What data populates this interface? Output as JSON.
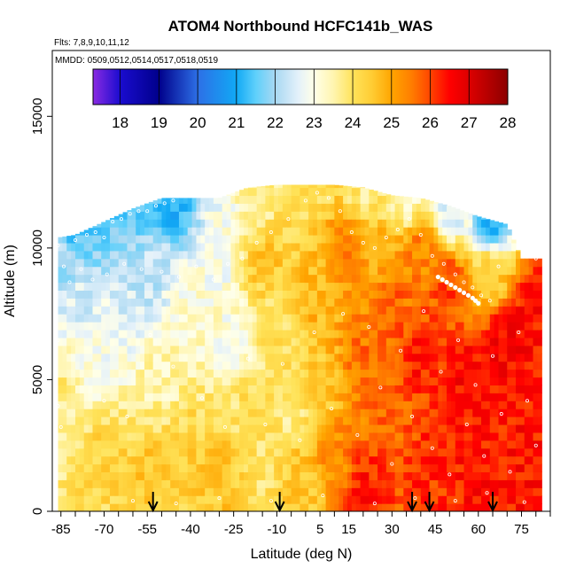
{
  "chart_data": {
    "type": "heatmap",
    "title": "ATOM4 Northbound HCFC141b_WAS",
    "flights_label": "Flts: 7,8,9,10,11,12",
    "dates_label": "MMDD: 0509,0512,0514,0517,0518,0519",
    "xlabel": "Latitude (deg N)",
    "ylabel": "Altitude (m)",
    "xlim": [
      -88,
      85
    ],
    "ylim": [
      0,
      17500
    ],
    "x_ticks": [
      -85,
      -80,
      -75,
      -70,
      -65,
      -60,
      -55,
      -50,
      -45,
      -40,
      -35,
      -30,
      -25,
      -20,
      -15,
      -10,
      -5,
      0,
      5,
      10,
      15,
      20,
      25,
      30,
      35,
      40,
      45,
      50,
      55,
      60,
      65,
      70,
      75,
      80,
      85
    ],
    "x_tick_labels": [
      {
        "value": -85,
        "label": "-85"
      },
      {
        "value": -70,
        "label": "-70"
      },
      {
        "value": -55,
        "label": "-55"
      },
      {
        "value": -40,
        "label": "-40"
      },
      {
        "value": -25,
        "label": "-25"
      },
      {
        "value": -10,
        "label": "-10"
      },
      {
        "value": 5,
        "label": "5"
      },
      {
        "value": 15,
        "label": "15"
      },
      {
        "value": 30,
        "label": "30"
      },
      {
        "value": 45,
        "label": "45"
      },
      {
        "value": 60,
        "label": "60"
      },
      {
        "value": 75,
        "label": "75"
      }
    ],
    "y_ticks": [
      {
        "value": 0,
        "label": "0"
      },
      {
        "value": 5000,
        "label": "5000"
      },
      {
        "value": 10000,
        "label": "10000"
      },
      {
        "value": 15000,
        "label": "15000"
      }
    ],
    "colorbar": {
      "min": 17.3,
      "max": 28,
      "ticks": [
        {
          "value": 18,
          "label": "18"
        },
        {
          "value": 19,
          "label": "19"
        },
        {
          "value": 20,
          "label": "20"
        },
        {
          "value": 21,
          "label": "21"
        },
        {
          "value": 22,
          "label": "22"
        },
        {
          "value": 23,
          "label": "23"
        },
        {
          "value": 24,
          "label": "24"
        },
        {
          "value": 25,
          "label": "25"
        },
        {
          "value": 26,
          "label": "26"
        },
        {
          "value": 27,
          "label": "27"
        },
        {
          "value": 28,
          "label": "28"
        }
      ],
      "stops": [
        {
          "value": 17.3,
          "color": "#8a2be2"
        },
        {
          "value": 18.0,
          "color": "#1a0ccf"
        },
        {
          "value": 19.0,
          "color": "#00008b"
        },
        {
          "value": 20.0,
          "color": "#2d6fe6"
        },
        {
          "value": 21.0,
          "color": "#11a9f5"
        },
        {
          "value": 21.5,
          "color": "#5fd0fb"
        },
        {
          "value": 22.0,
          "color": "#a8d8f2"
        },
        {
          "value": 22.6,
          "color": "#e4f1fa"
        },
        {
          "value": 23.0,
          "color": "#ffffe8"
        },
        {
          "value": 23.5,
          "color": "#fff5b0"
        },
        {
          "value": 24.0,
          "color": "#ffe35a"
        },
        {
          "value": 24.5,
          "color": "#ffcc33"
        },
        {
          "value": 25.0,
          "color": "#ffa500"
        },
        {
          "value": 25.5,
          "color": "#ff7f00"
        },
        {
          "value": 26.0,
          "color": "#ff4500"
        },
        {
          "value": 26.5,
          "color": "#ff0000"
        },
        {
          "value": 27.0,
          "color": "#dd0000"
        },
        {
          "value": 27.5,
          "color": "#b50000"
        },
        {
          "value": 28.0,
          "color": "#8b0000"
        }
      ]
    },
    "profile_arrows_lat": [
      -53,
      -9,
      37,
      43,
      65
    ],
    "coverage": [
      {
        "lat": -86,
        "ceiling": 10400
      },
      {
        "lat": -80,
        "ceiling": 10500
      },
      {
        "lat": -70,
        "ceiling": 11000
      },
      {
        "lat": -60,
        "ceiling": 11500
      },
      {
        "lat": -50,
        "ceiling": 11900
      },
      {
        "lat": -40,
        "ceiling": 11900
      },
      {
        "lat": -30,
        "ceiling": 11900
      },
      {
        "lat": -20,
        "ceiling": 12300
      },
      {
        "lat": -10,
        "ceiling": 12400
      },
      {
        "lat": 0,
        "ceiling": 12400
      },
      {
        "lat": 10,
        "ceiling": 12400
      },
      {
        "lat": 20,
        "ceiling": 12300
      },
      {
        "lat": 30,
        "ceiling": 12000
      },
      {
        "lat": 40,
        "ceiling": 11900
      },
      {
        "lat": 50,
        "ceiling": 11600
      },
      {
        "lat": 60,
        "ceiling": 11200
      },
      {
        "lat": 70,
        "ceiling": 10900
      },
      {
        "lat": 75,
        "ceiling": 9600
      },
      {
        "lat": 82,
        "ceiling": 9600
      }
    ],
    "value_field": [
      {
        "lat": -85,
        "alt": 9500,
        "value": 22.0
      },
      {
        "lat": -80,
        "alt": 10500,
        "value": 21.5
      },
      {
        "lat": -70,
        "alt": 11200,
        "value": 21.5
      },
      {
        "lat": -60,
        "alt": 11600,
        "value": 21.3
      },
      {
        "lat": -45,
        "alt": 11800,
        "value": 21.0
      },
      {
        "lat": -30,
        "alt": 11900,
        "value": 22.8
      },
      {
        "lat": -20,
        "alt": 12200,
        "value": 23.5
      },
      {
        "lat": 0,
        "alt": 12300,
        "value": 24.0
      },
      {
        "lat": 20,
        "alt": 12200,
        "value": 23.8
      },
      {
        "lat": 35,
        "alt": 11900,
        "value": 23.3
      },
      {
        "lat": 50,
        "alt": 11600,
        "value": 22.5
      },
      {
        "lat": 65,
        "alt": 11000,
        "value": 21.2
      },
      {
        "lat": -80,
        "alt": 8000,
        "value": 22.5
      },
      {
        "lat": -85,
        "alt": 5000,
        "value": 23.8
      },
      {
        "lat": -75,
        "alt": 6000,
        "value": 23.0
      },
      {
        "lat": -65,
        "alt": 7500,
        "value": 22.6
      },
      {
        "lat": -55,
        "alt": 9000,
        "value": 22.3
      },
      {
        "lat": -50,
        "alt": 5000,
        "value": 23.5
      },
      {
        "lat": -40,
        "alt": 7000,
        "value": 23.3
      },
      {
        "lat": -30,
        "alt": 9000,
        "value": 23.0
      },
      {
        "lat": -25,
        "alt": 6500,
        "value": 23.0
      },
      {
        "lat": -20,
        "alt": 4000,
        "value": 24.0
      },
      {
        "lat": -70,
        "alt": 2000,
        "value": 24.2
      },
      {
        "lat": -55,
        "alt": 1500,
        "value": 24.5
      },
      {
        "lat": -40,
        "alt": 2500,
        "value": 24.3
      },
      {
        "lat": -30,
        "alt": 1500,
        "value": 24.6
      },
      {
        "lat": -15,
        "alt": 9500,
        "value": 24.5
      },
      {
        "lat": -10,
        "alt": 6500,
        "value": 24.0
      },
      {
        "lat": -5,
        "alt": 4000,
        "value": 23.8
      },
      {
        "lat": -15,
        "alt": 1500,
        "value": 24.0
      },
      {
        "lat": 0,
        "alt": 1000,
        "value": 24.5
      },
      {
        "lat": 5,
        "alt": 8000,
        "value": 24.8
      },
      {
        "lat": 5,
        "alt": 5000,
        "value": 24.5
      },
      {
        "lat": 10,
        "alt": 2000,
        "value": 25.3
      },
      {
        "lat": 15,
        "alt": 10000,
        "value": 25.5
      },
      {
        "lat": 20,
        "alt": 6000,
        "value": 25.6
      },
      {
        "lat": 20,
        "alt": 1000,
        "value": 26.3
      },
      {
        "lat": 25,
        "alt": 9500,
        "value": 25.0
      },
      {
        "lat": 30,
        "alt": 3500,
        "value": 25.8
      },
      {
        "lat": 30,
        "alt": 8000,
        "value": 25.7
      },
      {
        "lat": 40,
        "alt": 10000,
        "value": 25.4
      },
      {
        "lat": 40,
        "alt": 6000,
        "value": 26.3
      },
      {
        "lat": 45,
        "alt": 2000,
        "value": 26.2
      },
      {
        "lat": 50,
        "alt": 8500,
        "value": 26.0
      },
      {
        "lat": 55,
        "alt": 5000,
        "value": 26.5
      },
      {
        "lat": 60,
        "alt": 1500,
        "value": 26.4
      },
      {
        "lat": 65,
        "alt": 9000,
        "value": 24.5
      },
      {
        "lat": 70,
        "alt": 6500,
        "value": 26.6
      },
      {
        "lat": 75,
        "alt": 3000,
        "value": 26.4
      },
      {
        "lat": 80,
        "alt": 8000,
        "value": 26.5
      },
      {
        "lat": 80,
        "alt": 1000,
        "value": 26.4
      }
    ],
    "sample_points": [
      {
        "lat": -86,
        "alt": 10100
      },
      {
        "lat": -84,
        "alt": 9300
      },
      {
        "lat": -82,
        "alt": 8700
      },
      {
        "lat": -80,
        "alt": 10300
      },
      {
        "lat": -76,
        "alt": 10500
      },
      {
        "lat": -73,
        "alt": 10600
      },
      {
        "lat": -70,
        "alt": 10400
      },
      {
        "lat": -67,
        "alt": 11000
      },
      {
        "lat": -64,
        "alt": 11100
      },
      {
        "lat": -61,
        "alt": 11300
      },
      {
        "lat": -58,
        "alt": 11400
      },
      {
        "lat": -55,
        "alt": 11400
      },
      {
        "lat": -52,
        "alt": 11600
      },
      {
        "lat": -49,
        "alt": 11700
      },
      {
        "lat": -46,
        "alt": 11800
      },
      {
        "lat": -86,
        "alt": 6500
      },
      {
        "lat": -86,
        "alt": 4000
      },
      {
        "lat": -85,
        "alt": 3200
      },
      {
        "lat": -78,
        "alt": 9200
      },
      {
        "lat": -74,
        "alt": 8800
      },
      {
        "lat": -69,
        "alt": 9000
      },
      {
        "lat": -63,
        "alt": 9400
      },
      {
        "lat": -57,
        "alt": 9200
      },
      {
        "lat": -50,
        "alt": 9100
      },
      {
        "lat": -44,
        "alt": 8900
      },
      {
        "lat": -38,
        "alt": 9300
      },
      {
        "lat": -32,
        "alt": 8800
      },
      {
        "lat": -27,
        "alt": 9400
      },
      {
        "lat": -22,
        "alt": 9600
      },
      {
        "lat": -17,
        "alt": 10200
      },
      {
        "lat": -12,
        "alt": 10600
      },
      {
        "lat": -6,
        "alt": 11100
      },
      {
        "lat": 0,
        "alt": 11800
      },
      {
        "lat": 4,
        "alt": 12100
      },
      {
        "lat": 8,
        "alt": 11900
      },
      {
        "lat": 12,
        "alt": 11400
      },
      {
        "lat": 16,
        "alt": 10600
      },
      {
        "lat": 20,
        "alt": 10200
      },
      {
        "lat": 24,
        "alt": 10000
      },
      {
        "lat": 28,
        "alt": 10400
      },
      {
        "lat": 32,
        "alt": 10700
      },
      {
        "lat": 36,
        "alt": 11100
      },
      {
        "lat": 40,
        "alt": 10500
      },
      {
        "lat": 44,
        "alt": 9700
      },
      {
        "lat": 48,
        "alt": 9400
      },
      {
        "lat": 52,
        "alt": 9000
      },
      {
        "lat": 55,
        "alt": 8700
      },
      {
        "lat": 58,
        "alt": 8500
      },
      {
        "lat": 61,
        "alt": 8200
      },
      {
        "lat": 64,
        "alt": 8000
      },
      {
        "lat": 67,
        "alt": 9300
      },
      {
        "lat": 71,
        "alt": 10800
      },
      {
        "lat": 74,
        "alt": 11000
      },
      {
        "lat": 77,
        "alt": 10800
      },
      {
        "lat": 80,
        "alt": 9600
      },
      {
        "lat": -70,
        "alt": 4200
      },
      {
        "lat": -62,
        "alt": 3600
      },
      {
        "lat": -54,
        "alt": 6700
      },
      {
        "lat": -46,
        "alt": 5500
      },
      {
        "lat": -36,
        "alt": 4300
      },
      {
        "lat": -28,
        "alt": 3200
      },
      {
        "lat": -20,
        "alt": 5800
      },
      {
        "lat": -14,
        "alt": 3300
      },
      {
        "lat": -8,
        "alt": 5600
      },
      {
        "lat": -2,
        "alt": 2700
      },
      {
        "lat": 3,
        "alt": 6800
      },
      {
        "lat": 9,
        "alt": 3900
      },
      {
        "lat": 13,
        "alt": 7500
      },
      {
        "lat": 18,
        "alt": 2900
      },
      {
        "lat": 22,
        "alt": 7000
      },
      {
        "lat": 26,
        "alt": 4700
      },
      {
        "lat": 30,
        "alt": 1800
      },
      {
        "lat": 33,
        "alt": 6100
      },
      {
        "lat": 37,
        "alt": 3600
      },
      {
        "lat": 41,
        "alt": 7600
      },
      {
        "lat": 44,
        "alt": 2400
      },
      {
        "lat": 47,
        "alt": 5300
      },
      {
        "lat": 50,
        "alt": 1400
      },
      {
        "lat": 53,
        "alt": 6500
      },
      {
        "lat": 56,
        "alt": 3300
      },
      {
        "lat": 59,
        "alt": 4800
      },
      {
        "lat": 62,
        "alt": 2100
      },
      {
        "lat": 65,
        "alt": 5900
      },
      {
        "lat": 68,
        "alt": 3700
      },
      {
        "lat": 71,
        "alt": 1500
      },
      {
        "lat": 74,
        "alt": 6800
      },
      {
        "lat": 77,
        "alt": 4200
      },
      {
        "lat": 80,
        "alt": 2500
      },
      {
        "lat": -60,
        "alt": 400
      },
      {
        "lat": -45,
        "alt": 300
      },
      {
        "lat": -30,
        "alt": 500
      },
      {
        "lat": -12,
        "alt": 400
      },
      {
        "lat": 6,
        "alt": 600
      },
      {
        "lat": 24,
        "alt": 300
      },
      {
        "lat": 38,
        "alt": 500
      },
      {
        "lat": 52,
        "alt": 400
      },
      {
        "lat": 63,
        "alt": 700
      },
      {
        "lat": 76,
        "alt": 350
      }
    ],
    "track_points": [
      {
        "lat": 46,
        "alt": 8900
      },
      {
        "lat": 47.5,
        "alt": 8800
      },
      {
        "lat": 49,
        "alt": 8700
      },
      {
        "lat": 50.5,
        "alt": 8600
      },
      {
        "lat": 52,
        "alt": 8500
      },
      {
        "lat": 53.5,
        "alt": 8400
      },
      {
        "lat": 55,
        "alt": 8300
      },
      {
        "lat": 56.5,
        "alt": 8200
      },
      {
        "lat": 58,
        "alt": 8100
      },
      {
        "lat": 59,
        "alt": 8000
      },
      {
        "lat": 60,
        "alt": 7900
      }
    ]
  }
}
